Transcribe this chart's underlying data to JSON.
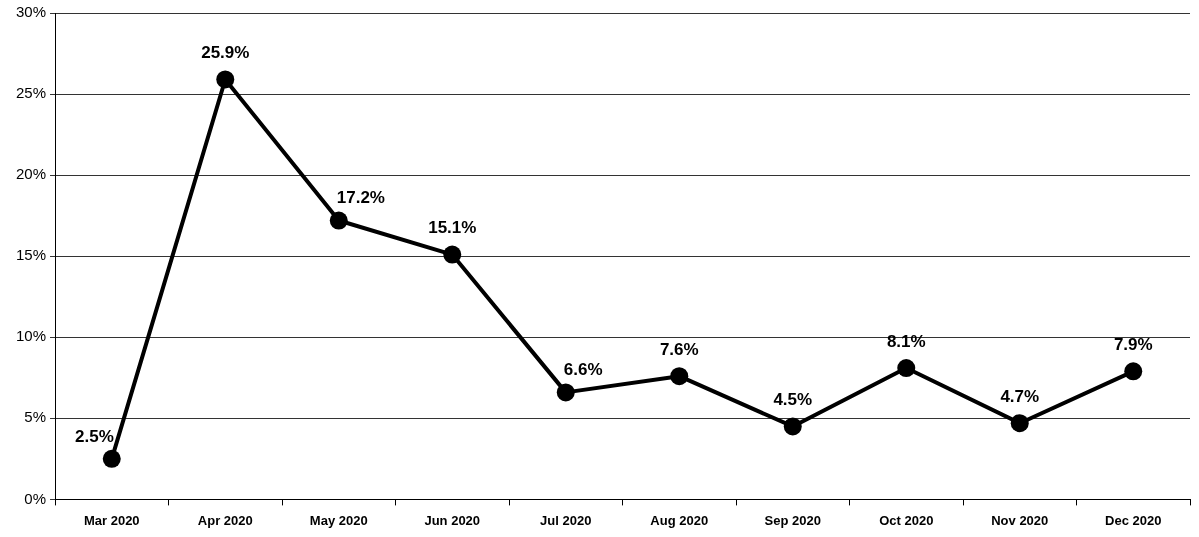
{
  "chart_data": {
    "type": "line",
    "categories": [
      "Mar 2020",
      "Apr 2020",
      "May 2020",
      "Jun 2020",
      "Jul 2020",
      "Aug 2020",
      "Sep 2020",
      "Oct 2020",
      "Nov 2020",
      "Dec 2020"
    ],
    "values": [
      2.5,
      25.9,
      17.2,
      15.1,
      6.6,
      7.6,
      4.5,
      8.1,
      4.7,
      7.9
    ],
    "value_labels": [
      "2.5%",
      "25.9%",
      "17.2%",
      "15.1%",
      "6.6%",
      "7.6%",
      "4.5%",
      "8.1%",
      "4.7%",
      "7.9%"
    ],
    "color": "#000000",
    "ylim": [
      0,
      30
    ],
    "yticks": [
      {
        "value": 0,
        "label": "0%"
      },
      {
        "value": 5,
        "label": "5%"
      },
      {
        "value": 10,
        "label": "10%"
      },
      {
        "value": 15,
        "label": "15%"
      },
      {
        "value": 20,
        "label": "20%"
      },
      {
        "value": 25,
        "label": "25%"
      },
      {
        "value": 30,
        "label": "30%"
      }
    ],
    "grid": "y",
    "marker": "circle",
    "line_style": "solid"
  }
}
